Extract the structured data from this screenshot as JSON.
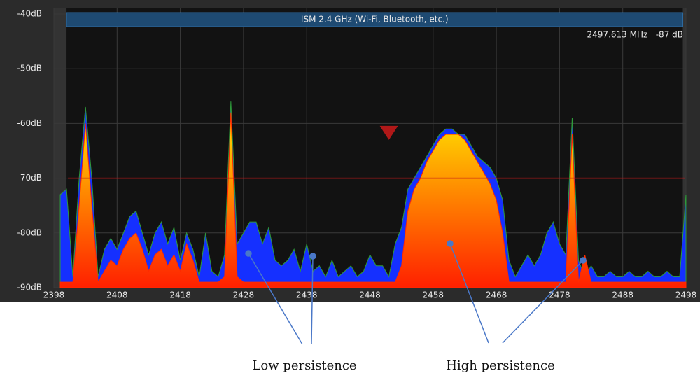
{
  "chart_data": {
    "type": "spectrum",
    "band": {
      "label": "ISM 2.4 GHz (Wi-Fi, Bluetooth, etc.)",
      "start": 2400,
      "end": 2497.5
    },
    "readout": "2497.613 MHz   -87 dB",
    "marker": {
      "x": 2451,
      "y": -63
    },
    "threshold": -70,
    "annotations": [
      "Low persistence",
      "High persistence"
    ],
    "xlim": [
      2398,
      2498
    ],
    "xticks": [
      2398,
      2408,
      2418,
      2428,
      2438,
      2448,
      2458,
      2468,
      2478,
      2488,
      2498
    ],
    "ylim": [
      -90,
      -40
    ],
    "yticks": [
      {
        "value": -90,
        "label": "-90dB"
      },
      {
        "value": -80,
        "label": "-80dB"
      },
      {
        "value": -70,
        "label": "-70dB"
      },
      {
        "value": -60,
        "label": "-60dB"
      },
      {
        "value": -50,
        "label": "-50dB"
      },
      {
        "value": -40,
        "label": "-40dB"
      }
    ],
    "grid": true,
    "x": [
      2399,
      2400,
      2401,
      2402,
      2403,
      2404,
      2405,
      2406,
      2407,
      2408,
      2409,
      2410,
      2411,
      2412,
      2413,
      2414,
      2415,
      2416,
      2417,
      2418,
      2419,
      2420,
      2421,
      2422,
      2423,
      2424,
      2425,
      2426,
      2427,
      2428,
      2429,
      2430,
      2431,
      2432,
      2433,
      2434,
      2435,
      2436,
      2437,
      2438,
      2439,
      2440,
      2441,
      2442,
      2443,
      2444,
      2445,
      2446,
      2447,
      2448,
      2449,
      2450,
      2451,
      2452,
      2453,
      2454,
      2455,
      2456,
      2457,
      2458,
      2459,
      2460,
      2461,
      2462,
      2463,
      2464,
      2465,
      2466,
      2467,
      2468,
      2469,
      2470,
      2471,
      2472,
      2473,
      2474,
      2475,
      2476,
      2477,
      2478,
      2479,
      2480,
      2481,
      2482,
      2483,
      2484,
      2485,
      2486,
      2487,
      2488,
      2489,
      2490,
      2491,
      2492,
      2493,
      2494,
      2495,
      2496,
      2497,
      2498
    ],
    "series": [
      {
        "color": "#1530ff",
        "values": [
          -73,
          -72,
          -88,
          -70,
          -57,
          -70,
          -88,
          -83,
          -81,
          -83,
          -80,
          -77,
          -76,
          -80,
          -84,
          -80,
          -78,
          -82,
          -79,
          -85,
          -80,
          -83,
          -88,
          -80,
          -87,
          -88,
          -84,
          -56,
          -82,
          -80,
          -78,
          -78,
          -82,
          -79,
          -85,
          -86,
          -85,
          -83,
          -87,
          -82,
          -87,
          -86,
          -88,
          -85,
          -88,
          -87,
          -86,
          -88,
          -87,
          -84,
          -86,
          -86,
          -88,
          -82,
          -79,
          -72,
          -70,
          -68,
          -66,
          -64,
          -62,
          -61,
          -61,
          -62,
          -62,
          -64,
          -66,
          -67,
          -68,
          -70,
          -74,
          -85,
          -88,
          -86,
          -84,
          -86,
          -84,
          -80,
          -78,
          -82,
          -84,
          -59,
          -85,
          -88,
          -86,
          -88,
          -88,
          -87,
          -88,
          -88,
          -87,
          -88,
          -88,
          -87,
          -88,
          -88,
          -87,
          -88,
          -88,
          -73
        ]
      },
      {
        "color": "#ff2a00",
        "values": [
          -89,
          -89,
          -89,
          -75,
          -60,
          -75,
          -89,
          -87,
          -85,
          -86,
          -83,
          -81,
          -80,
          -83,
          -87,
          -84,
          -83,
          -86,
          -84,
          -87,
          -82,
          -85,
          -89,
          -89,
          -89,
          -89,
          -88,
          -58,
          -88,
          -89,
          -89,
          -89,
          -89,
          -89,
          -89,
          -89,
          -89,
          -89,
          -89,
          -89,
          -89,
          -89,
          -89,
          -89,
          -89,
          -89,
          -89,
          -89,
          -89,
          -89,
          -89,
          -89,
          -89,
          -89,
          -86,
          -76,
          -72,
          -70,
          -67,
          -65,
          -63,
          -62,
          -62,
          -62,
          -63,
          -65,
          -67,
          -69,
          -71,
          -74,
          -80,
          -89,
          -89,
          -89,
          -89,
          -89,
          -89,
          -89,
          -89,
          -89,
          -89,
          -62,
          -89,
          -84,
          -89,
          -89,
          -89,
          -89,
          -89,
          -89,
          -89,
          -89,
          -89,
          -89,
          -89,
          -89,
          -89,
          -89,
          -89,
          -89
        ]
      }
    ]
  }
}
